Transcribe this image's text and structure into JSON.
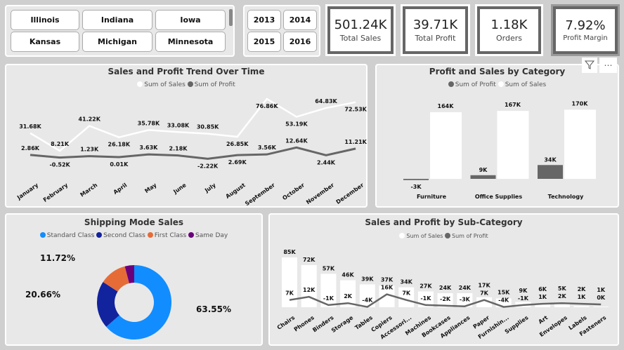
{
  "slicers": {
    "states": [
      "Illinois",
      "Indiana",
      "Iowa",
      "Kansas",
      "Michigan",
      "Minnesota"
    ],
    "years": [
      "2013",
      "2014",
      "2015",
      "2016"
    ]
  },
  "kpis": [
    {
      "value": "501.24K",
      "label": "Total Sales"
    },
    {
      "value": "39.71K",
      "label": "Total Profit"
    },
    {
      "value": "1.18K",
      "label": "Orders"
    },
    {
      "value": "7.92%",
      "label": "Profit Margin"
    }
  ],
  "toolbar": {
    "filter_icon": "funnel",
    "more_icon": "ellipsis",
    "more_label": "⋯"
  },
  "colors": {
    "sales": "#ffffff",
    "profit": "#666666",
    "standard": "#118dff",
    "second": "#12239e",
    "first": "#e66c37",
    "same_day": "#6b007b"
  },
  "chart_data": [
    {
      "type": "line",
      "title": "Sales and Profit Trend Over Time",
      "legend": [
        "Sum of Sales",
        "Sum of Profit"
      ],
      "categories": [
        "January",
        "February",
        "March",
        "April",
        "May",
        "June",
        "July",
        "August",
        "September",
        "October",
        "November",
        "December"
      ],
      "series": [
        {
          "name": "Sum of Sales",
          "values": [
            31.68,
            8.21,
            41.22,
            26.18,
            35.78,
            33.08,
            30.85,
            26.85,
            76.86,
            53.19,
            64.83,
            72.53
          ],
          "labels": [
            "31.68K",
            "8.21K",
            "41.22K",
            "26.18K",
            "35.78K",
            "33.08K",
            "30.85K",
            "26.85K",
            "76.86K",
            "53.19K",
            "64.83K",
            "72.53K"
          ]
        },
        {
          "name": "Sum of Profit",
          "values": [
            2.86,
            -0.52,
            1.23,
            0.01,
            3.63,
            2.18,
            -2.22,
            2.69,
            3.56,
            12.64,
            2.44,
            11.21
          ],
          "labels": [
            "2.86K",
            "-0.52K",
            "1.23K",
            "0.01K",
            "3.63K",
            "2.18K",
            "-2.22K",
            "2.69K",
            "3.56K",
            "12.64K",
            "2.44K",
            "11.21K"
          ]
        }
      ]
    },
    {
      "type": "bar",
      "title": "Profit and Sales by Category",
      "legend": [
        "Sum of Profit",
        "Sum of Sales"
      ],
      "categories": [
        "Furniture",
        "Office Supplies",
        "Technology"
      ],
      "series": [
        {
          "name": "Sum of Profit",
          "values": [
            -3,
            9,
            34
          ],
          "labels": [
            "-3K",
            "9K",
            "34K"
          ]
        },
        {
          "name": "Sum of Sales",
          "values": [
            164,
            167,
            170
          ],
          "labels": [
            "164K",
            "167K",
            "170K"
          ]
        }
      ]
    },
    {
      "type": "pie",
      "title": "Shipping Mode Sales",
      "legend": [
        "Standard Class",
        "Second Class",
        "First Class",
        "Same Day"
      ],
      "values": [
        63.55,
        20.66,
        11.72,
        4.07
      ],
      "labels": [
        "63.55%",
        "20.66%",
        "11.72%",
        ""
      ]
    },
    {
      "type": "bar",
      "title": "Sales and Profit by Sub-Category",
      "legend": [
        "Sum of Sales",
        "Sum of Profit"
      ],
      "categories": [
        "Chairs",
        "Phones",
        "Binders",
        "Storage",
        "Tables",
        "Copiers",
        "Accessori...",
        "Machines",
        "Bookcases",
        "Appliances",
        "Paper",
        "Furnishin...",
        "Supplies",
        "Art",
        "Envelopes",
        "Labels",
        "Fasteners"
      ],
      "series": [
        {
          "name": "Sum of Sales",
          "values": [
            85,
            72,
            57,
            46,
            39,
            37,
            34,
            27,
            24,
            24,
            17,
            15,
            9,
            6,
            5,
            2,
            1
          ],
          "labels": [
            "85K",
            "72K",
            "57K",
            "46K",
            "39K",
            "37K",
            "34K",
            "27K",
            "24K",
            "24K",
            "17K",
            "15K",
            "9K",
            "6K",
            "5K",
            "2K",
            "1K"
          ]
        },
        {
          "name": "Sum of Profit",
          "values": [
            7,
            12,
            -1,
            2,
            -4,
            16,
            7,
            -1,
            -2,
            -3,
            7,
            -4,
            -1,
            1,
            2,
            1,
            0
          ],
          "labels": [
            "7K",
            "12K",
            "-1K",
            "2K",
            "-4K",
            "16K",
            "7K",
            "-1K",
            "-2K",
            "-3K",
            "7K",
            "-4K",
            "-1K",
            "1K",
            "2K",
            "1K",
            "0K"
          ]
        }
      ]
    }
  ]
}
